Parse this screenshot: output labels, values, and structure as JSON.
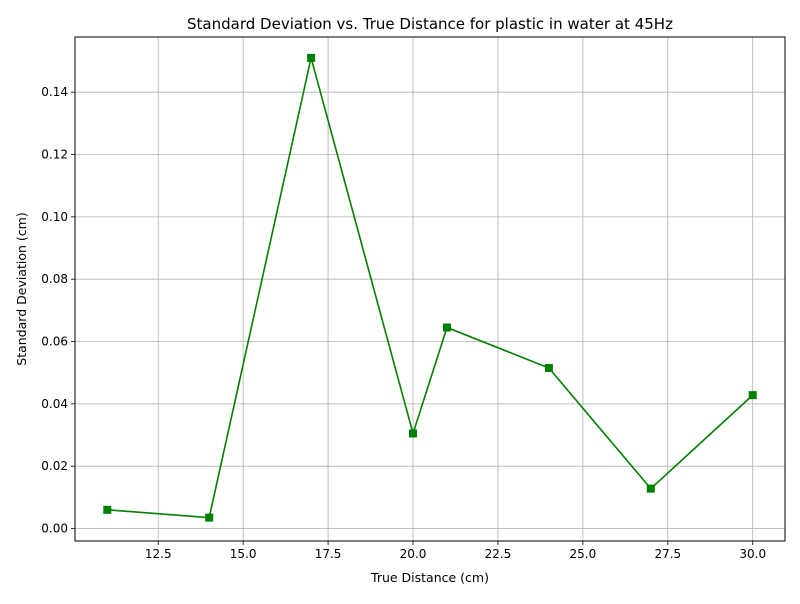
{
  "chart_data": {
    "type": "line",
    "title": "Standard Deviation vs. True Distance for plastic in water at 45Hz",
    "xlabel": "True Distance (cm)",
    "ylabel": "Standard Deviation (cm)",
    "xlim": [
      10.05,
      30.95
    ],
    "ylim": [
      -0.004,
      0.1577
    ],
    "xticks": [
      12.5,
      15.0,
      17.5,
      20.0,
      22.5,
      25.0,
      27.5,
      30.0
    ],
    "xtick_labels": [
      "12.5",
      "15.0",
      "17.5",
      "20.0",
      "22.5",
      "25.0",
      "27.5",
      "30.0"
    ],
    "yticks": [
      0.0,
      0.02,
      0.04,
      0.06,
      0.08,
      0.1,
      0.12,
      0.14
    ],
    "ytick_labels": [
      "0.00",
      "0.02",
      "0.04",
      "0.06",
      "0.08",
      "0.10",
      "0.12",
      "0.14"
    ],
    "grid": true,
    "series": [
      {
        "color": "#008000",
        "marker": "square",
        "x": [
          11,
          14,
          17,
          20,
          21,
          24,
          27,
          30
        ],
        "y": [
          0.006,
          0.0035,
          0.151,
          0.0305,
          0.0645,
          0.0515,
          0.0128,
          0.0428
        ]
      }
    ]
  }
}
